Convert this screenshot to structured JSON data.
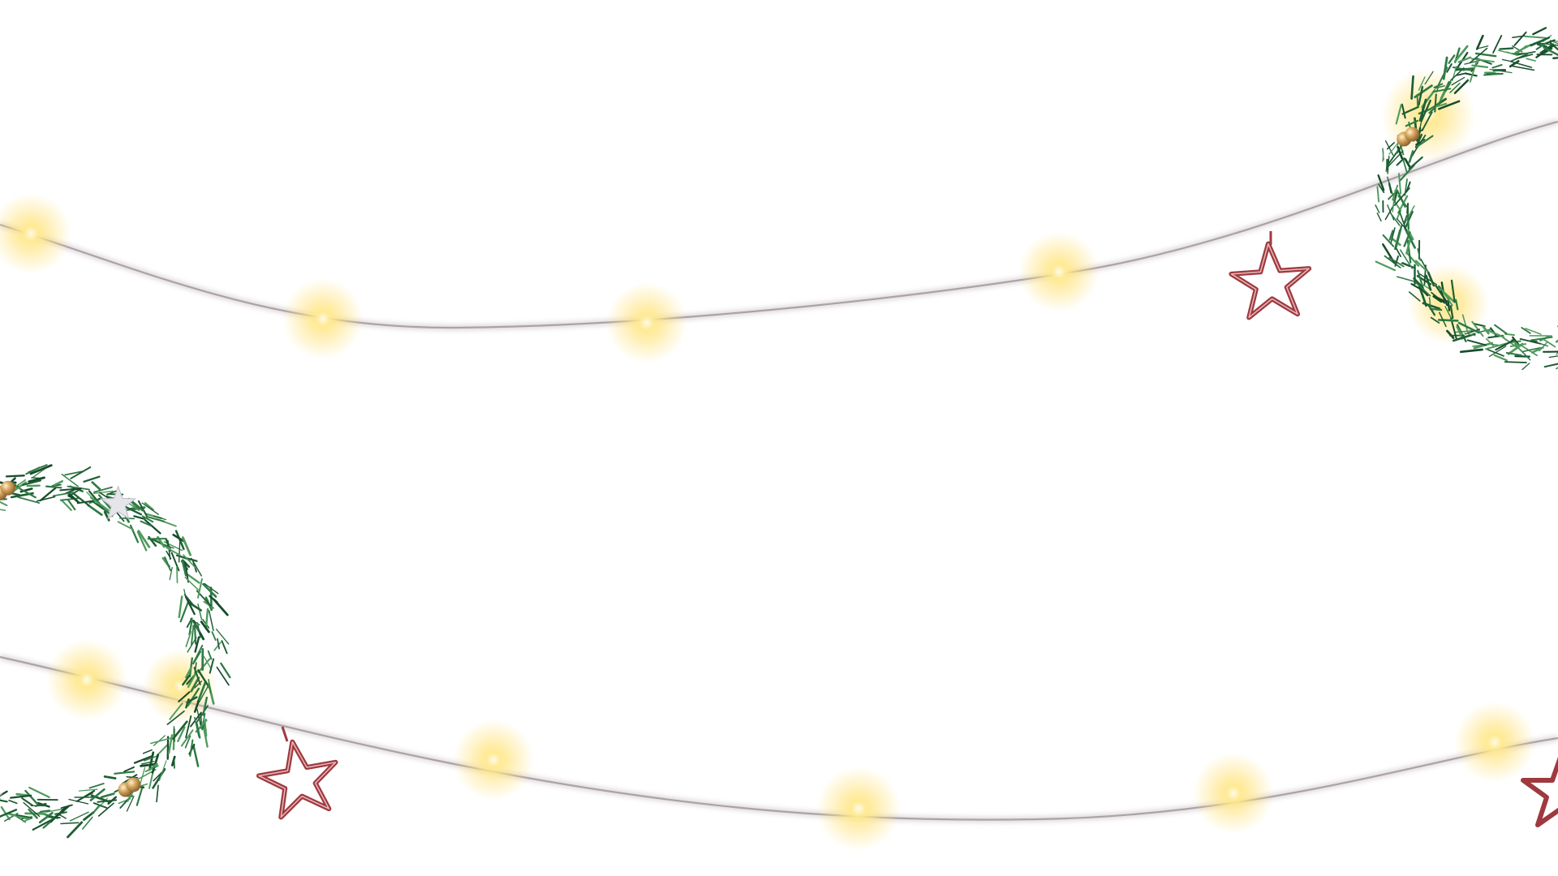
{
  "scene": {
    "type": "decorative-background",
    "theme": "christmas",
    "background_color": "#ffffff"
  },
  "colors": {
    "wire": "#a9a3a6",
    "wire_shadow": "#d9cfd3",
    "bulb_glow": "#ffe27a",
    "bulb_core": "#fffbe8",
    "star_outline": "#9e3a3f",
    "star_fill": "#ffffff",
    "pine_dark": "#1f5e34",
    "pine_mid": "#2f7a45",
    "pine_light": "#4f9a5c",
    "berry_gold": "#d8a860",
    "silver_star": "#e6e6ea"
  },
  "garlands": [
    {
      "name": "upper-light-string",
      "bulbs": 6,
      "star_ornaments": 1
    },
    {
      "name": "lower-light-string",
      "bulbs": 7,
      "star_ornaments": 2
    }
  ],
  "wreaths": [
    {
      "name": "top-right-wreath",
      "position": "top-right"
    },
    {
      "name": "bottom-left-wreath",
      "position": "bottom-left"
    }
  ],
  "icons": {
    "bulb": "fairy-light-icon",
    "star": "star-ornament-icon",
    "wreath": "pine-wreath-icon"
  }
}
